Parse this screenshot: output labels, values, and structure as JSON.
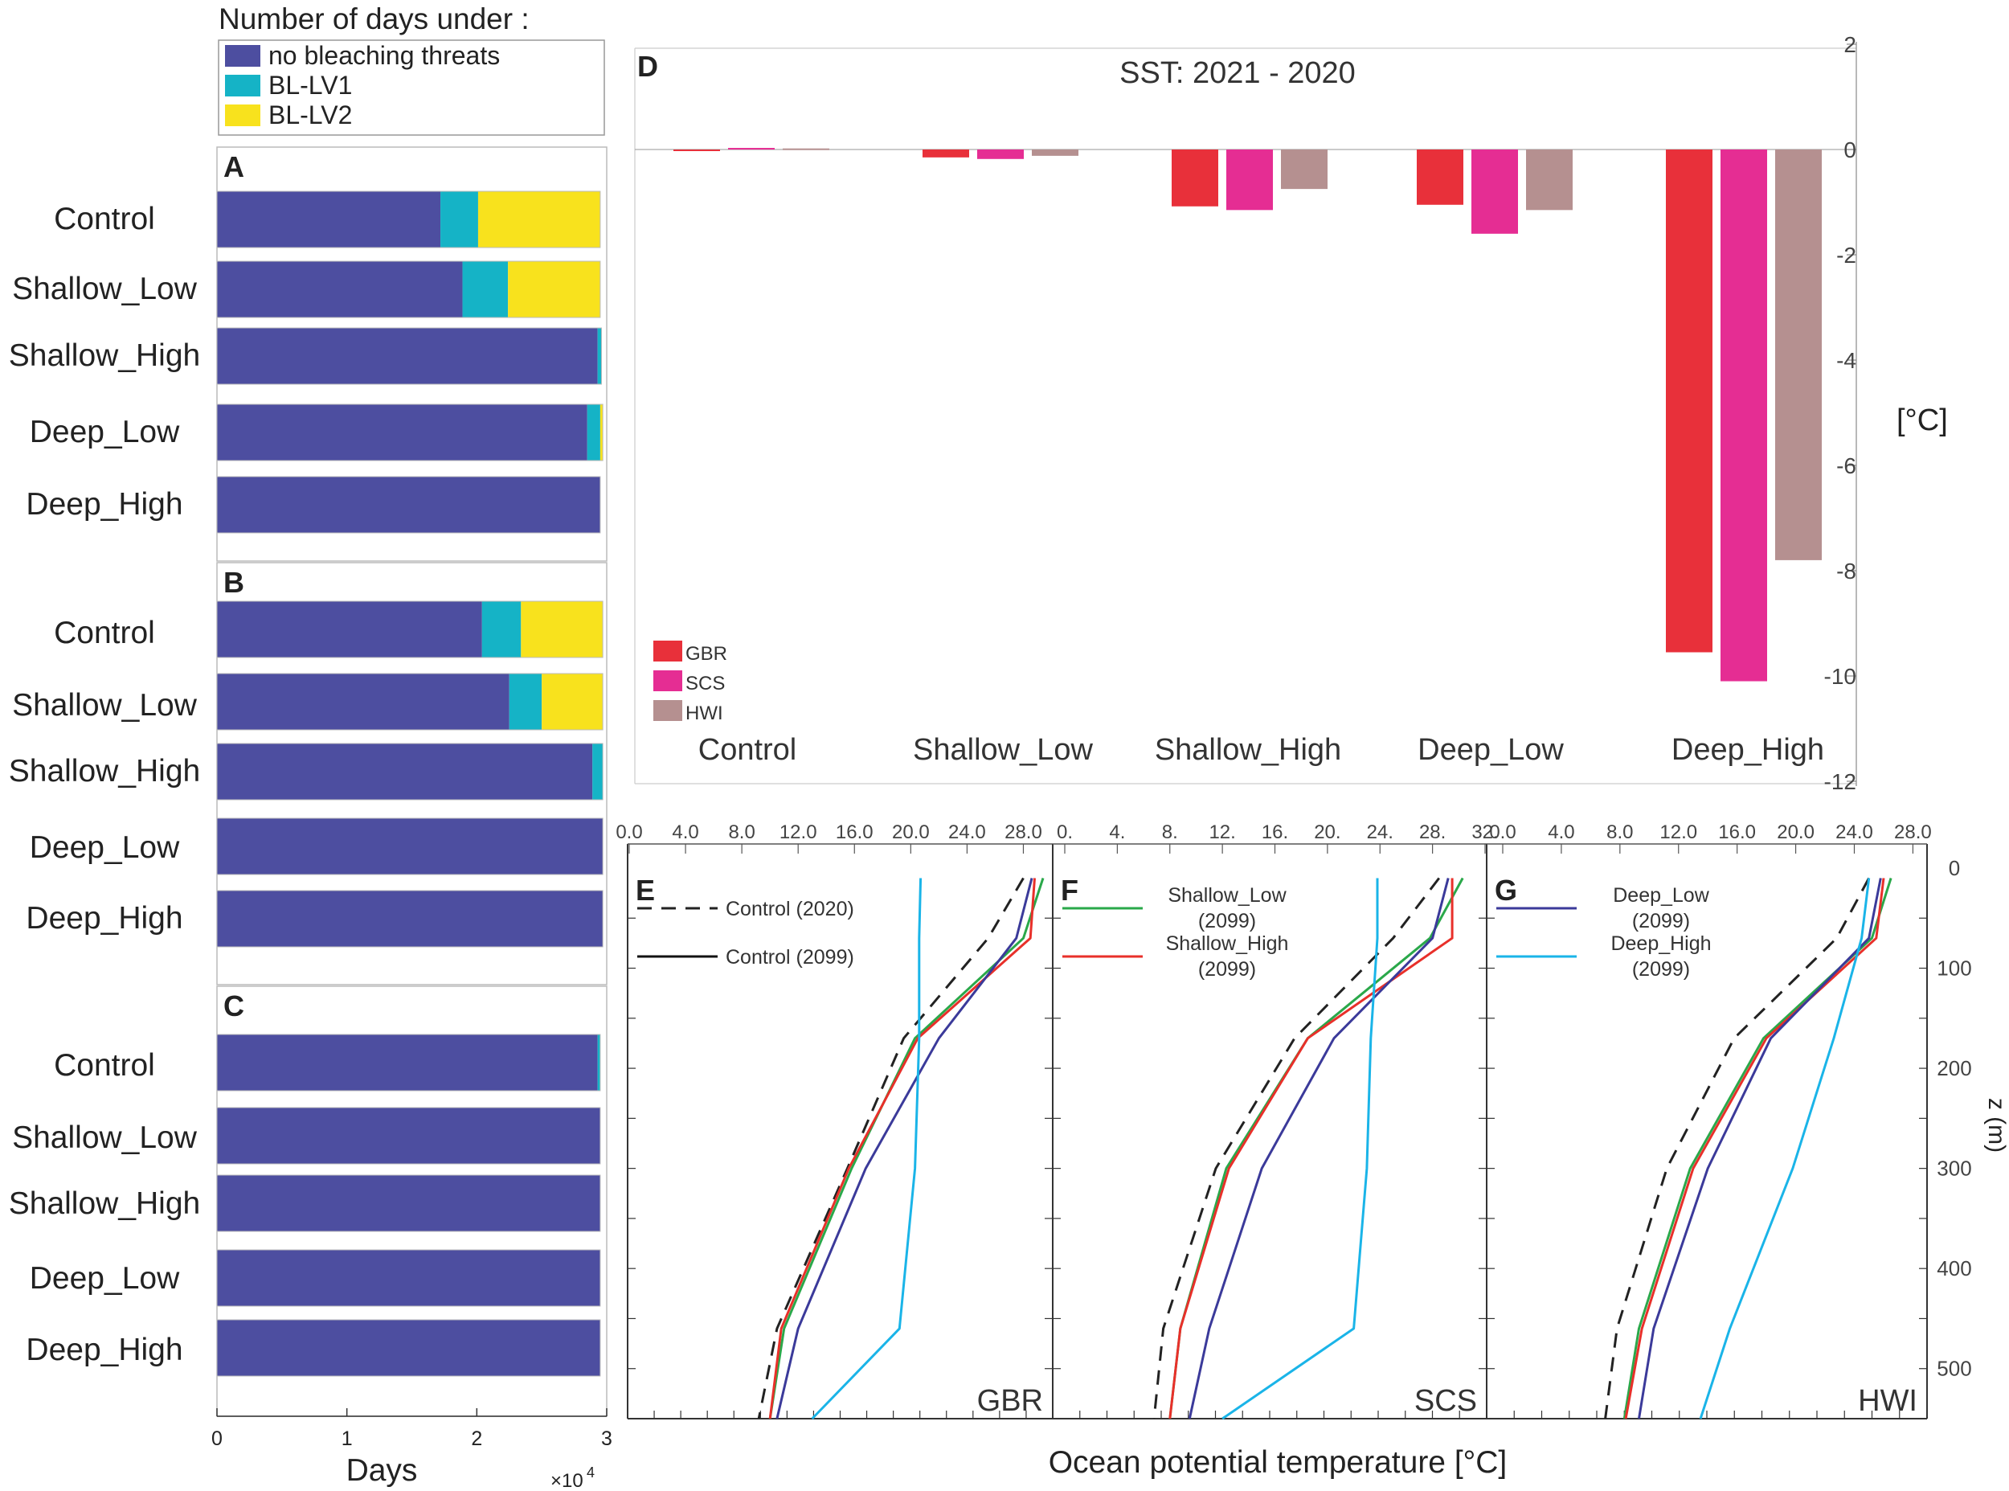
{
  "colors": {
    "none": "#4d4ea0",
    "lv1": "#15b3c6",
    "lv2": "#f8e21d",
    "gbr": "#e8303a",
    "scs": "#e52d93",
    "hwi": "#b59090",
    "control2020": "#222222",
    "shallow_low": "#2aa84a",
    "shallow_high": "#e8302a",
    "deep_low": "#3b3a9a",
    "deep_high": "#1ab4e8"
  },
  "legend_top": {
    "title": "Number of days under :",
    "items": [
      "no bleaching threats",
      "BL-LV1",
      "BL-LV2"
    ]
  },
  "bleaching": {
    "xlabel": "Days",
    "multiplier": "×10",
    "multiplier_exp": "4",
    "xticks": [
      "0",
      "1",
      "2",
      "3"
    ],
    "xmax": 3,
    "panels": [
      {
        "label": "A",
        "rows": [
          {
            "name": "Control",
            "values": [
              1.72,
              0.29,
              0.94
            ]
          },
          {
            "name": "Shallow_Low",
            "values": [
              1.89,
              0.35,
              0.71
            ]
          },
          {
            "name": "Shallow_High",
            "values": [
              2.93,
              0.03,
              0.0
            ]
          },
          {
            "name": "Deep_Low",
            "values": [
              2.85,
              0.1,
              0.02
            ]
          },
          {
            "name": "Deep_High",
            "values": [
              2.95,
              0.0,
              0.0
            ]
          }
        ]
      },
      {
        "label": "B",
        "rows": [
          {
            "name": "Control",
            "values": [
              2.04,
              0.3,
              0.63
            ]
          },
          {
            "name": "Shallow_Low",
            "values": [
              2.25,
              0.25,
              0.47
            ]
          },
          {
            "name": "Shallow_High",
            "values": [
              2.89,
              0.08,
              0.0
            ]
          },
          {
            "name": "Deep_Low",
            "values": [
              2.97,
              0.0,
              0.0
            ]
          },
          {
            "name": "Deep_High",
            "values": [
              2.97,
              0.0,
              0.0
            ]
          }
        ]
      },
      {
        "label": "C",
        "rows": [
          {
            "name": "Control",
            "values": [
              2.93,
              0.02,
              0.0
            ]
          },
          {
            "name": "Shallow_Low",
            "values": [
              2.95,
              0.0,
              0.0
            ]
          },
          {
            "name": "Shallow_High",
            "values": [
              2.95,
              0.0,
              0.0
            ]
          },
          {
            "name": "Deep_Low",
            "values": [
              2.95,
              0.0,
              0.0
            ]
          },
          {
            "name": "Deep_High",
            "values": [
              2.95,
              0.0,
              0.0
            ]
          }
        ]
      }
    ]
  },
  "chart_data": {
    "type": "bar",
    "label": "D",
    "title": "SST: 2021 - 2020",
    "ylabel": "[°C]",
    "ylim": [
      -12,
      2
    ],
    "yticks": [
      "2",
      "0",
      "-2",
      "-4",
      "-6",
      "-8",
      "-10",
      "-12"
    ],
    "categories": [
      "Control",
      "Shallow_Low",
      "Shallow_High",
      "Deep_Low",
      "Deep_High"
    ],
    "series": [
      {
        "name": "GBR",
        "values": [
          -0.03,
          -0.15,
          -1.08,
          -1.05,
          -9.55
        ]
      },
      {
        "name": "SCS",
        "values": [
          0.03,
          -0.18,
          -1.15,
          -1.6,
          -10.1
        ]
      },
      {
        "name": "HWI",
        "values": [
          0.02,
          -0.12,
          -0.75,
          -1.15,
          -7.8
        ]
      }
    ]
  },
  "profiles": {
    "xlabel": "Ocean potential temperature [°C]",
    "zlabel": "z (m)",
    "zticks": [
      "0",
      "100",
      "200",
      "300",
      "400",
      "500"
    ],
    "depth": [
      10,
      70,
      170,
      300,
      460,
      550
    ],
    "panels": [
      {
        "label": "E",
        "region": "GBR",
        "xticks": [
          "0.0",
          "4.0",
          "8.0",
          "12.0",
          "16.0",
          "20.0",
          "24.0",
          "28.0"
        ],
        "xdomain": [
          0,
          29.8
        ],
        "legend": [
          "Control (2020)",
          "Control (2099)"
        ],
        "series": {
          "control2020": [
            28.0,
            25.5,
            19.5,
            15.5,
            10.5,
            9.2
          ],
          "control2099": [
            29.0,
            27.0,
            21.0,
            16.5,
            11.5,
            10.2
          ],
          "shallow_low": [
            29.4,
            28.0,
            20.3,
            15.8,
            11.0,
            10.0
          ],
          "shallow_high": [
            28.8,
            28.5,
            20.5,
            15.6,
            10.8,
            10.0
          ],
          "deep_low": [
            28.6,
            27.5,
            22.0,
            16.8,
            12.0,
            10.5
          ],
          "deep_high": [
            20.7,
            20.6,
            20.6,
            20.3,
            19.2,
            13.0
          ]
        }
      },
      {
        "label": "F",
        "region": "SCS",
        "xticks": [
          "0.",
          "4.",
          "8.",
          "12.",
          "16.",
          "20.",
          "24.",
          "28.",
          "32."
        ],
        "xdomain": [
          0,
          32
        ],
        "legend": [
          "Shallow_Low\n(2099)",
          "Shallow_High\n(2099)"
        ],
        "series": {
          "control2020": [
            28.5,
            25.0,
            17.5,
            11.5,
            7.5,
            6.8
          ],
          "control2099": [
            30.0,
            27.5,
            19.0,
            12.5,
            8.5,
            7.8
          ],
          "shallow_low": [
            30.3,
            27.8,
            18.5,
            12.3,
            8.8,
            8.0
          ],
          "shallow_high": [
            29.5,
            29.5,
            18.5,
            12.5,
            8.8,
            8.0
          ],
          "deep_low": [
            29.2,
            28.0,
            20.5,
            15.0,
            11.0,
            9.5
          ],
          "deep_high": [
            23.8,
            23.8,
            23.3,
            23.0,
            22.0,
            12.0
          ]
        }
      },
      {
        "label": "G",
        "region": "HWI",
        "xticks": [
          "0.0",
          "4.0",
          "8.0",
          "12.0",
          "16.0",
          "20.0",
          "24.0",
          "28.0"
        ],
        "xdomain": [
          0,
          28.8
        ],
        "legend": [
          "Deep_Low\n(2099)",
          "Deep_High\n(2099)"
        ],
        "series": {
          "control2020": [
            25.0,
            22.8,
            15.8,
            11.2,
            7.8,
            7.0
          ],
          "control2099": [
            26.2,
            24.8,
            17.5,
            12.5,
            9.0,
            8.0
          ],
          "shallow_low": [
            26.5,
            25.2,
            17.8,
            12.8,
            9.3,
            8.3
          ],
          "shallow_high": [
            26.0,
            25.5,
            18.0,
            13.0,
            9.5,
            8.4
          ],
          "deep_low": [
            25.8,
            25.0,
            18.3,
            14.0,
            10.3,
            9.3
          ],
          "deep_high": [
            25.0,
            24.5,
            22.6,
            19.8,
            15.5,
            13.5
          ]
        }
      }
    ]
  }
}
